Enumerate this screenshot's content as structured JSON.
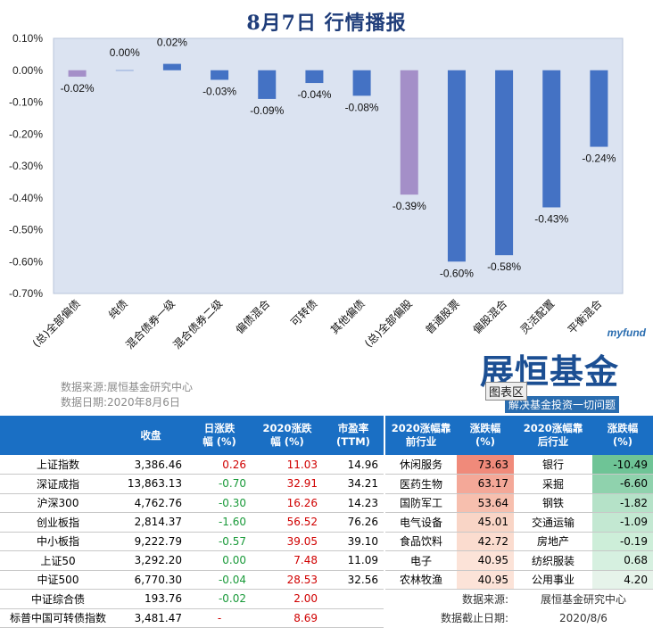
{
  "title": "8月7日  行情播报",
  "chart_data": {
    "type": "bar",
    "categories": [
      "(总)全部偏债",
      "纯债",
      "混合债券一级",
      "混合债券二级",
      "偏债混合",
      "可转债",
      "其他偏债",
      "(总)全部偏股",
      "普通股票",
      "偏股混合",
      "灵活配置",
      "平衡混合"
    ],
    "values": [
      -0.02,
      0.0,
      0.02,
      -0.03,
      -0.09,
      -0.04,
      -0.08,
      -0.39,
      -0.6,
      -0.58,
      -0.43,
      -0.24
    ],
    "value_labels": [
      "-0.02%",
      "0.00%",
      "0.02%",
      "-0.03%",
      "-0.09%",
      "-0.04%",
      "-0.08%",
      "-0.39%",
      "-0.60%",
      "-0.58%",
      "-0.43%",
      "-0.24%"
    ],
    "highlight_indices": [
      0,
      7
    ],
    "yticks": [
      "0.10%",
      "0.00%",
      "-0.10%",
      "-0.20%",
      "-0.30%",
      "-0.40%",
      "-0.50%",
      "-0.60%",
      "-0.70%"
    ],
    "ylim": [
      -0.7,
      0.1
    ],
    "colors": {
      "bar": "#4472c4",
      "highlight": "#a48fc8",
      "plot_bg": "#dbe3f1"
    }
  },
  "source": {
    "line1": "数据来源:展恒基金研究中心",
    "line2": "数据日期:2020年8月6日"
  },
  "logo": {
    "brand_en": "myfund",
    "brand_cn": "展恒基金",
    "chip": "图表区",
    "slogan": "解决基金投资一切问题"
  },
  "left_table": {
    "headers": [
      "",
      "收盘",
      "日涨跌\n幅 (%)",
      "2020涨跌\n幅 (%)",
      "市盈率\n(TTM)"
    ],
    "rows": [
      {
        "name": "上证指数",
        "close": "3,386.46",
        "day": "0.26",
        "ytd": "11.03",
        "pe": "14.96"
      },
      {
        "name": "深证成指",
        "close": "13,863.13",
        "day": "-0.70",
        "ytd": "32.91",
        "pe": "34.21"
      },
      {
        "name": "沪深300",
        "close": "4,762.76",
        "day": "-0.30",
        "ytd": "16.26",
        "pe": "14.23"
      },
      {
        "name": "创业板指",
        "close": "2,814.37",
        "day": "-1.60",
        "ytd": "56.52",
        "pe": "76.26"
      },
      {
        "name": "中小板指",
        "close": "9,222.79",
        "day": "-0.57",
        "ytd": "39.05",
        "pe": "39.10"
      },
      {
        "name": "上证50",
        "close": "3,292.20",
        "day": "0.00",
        "ytd": "7.48",
        "pe": "11.09"
      },
      {
        "name": "中证500",
        "close": "6,770.30",
        "day": "-0.04",
        "ytd": "28.53",
        "pe": "32.56"
      },
      {
        "name": "中证综合债",
        "close": "193.76",
        "day": "-0.02",
        "ytd": "2.00",
        "pe": ""
      },
      {
        "name": "标普中国可转债指数",
        "close": "3,481.47",
        "day": "-",
        "ytd": "8.69",
        "pe": ""
      }
    ]
  },
  "right_table": {
    "headers": [
      "2020涨幅靠\n前行业",
      "涨跌幅\n(%)",
      "2020涨幅靠\n后行业",
      "涨跌幅\n(%)"
    ],
    "rows": [
      {
        "top": "休闲服务",
        "top_v": "73.63",
        "bot": "银行",
        "bot_v": "-10.49"
      },
      {
        "top": "医药生物",
        "top_v": "63.17",
        "bot": "采掘",
        "bot_v": "-6.60"
      },
      {
        "top": "国防军工",
        "top_v": "53.64",
        "bot": "钢铁",
        "bot_v": "-1.82"
      },
      {
        "top": "电气设备",
        "top_v": "45.01",
        "bot": "交通运输",
        "bot_v": "-1.09"
      },
      {
        "top": "食品饮料",
        "top_v": "42.72",
        "bot": "房地产",
        "bot_v": "-0.19"
      },
      {
        "top": "电子",
        "top_v": "40.95",
        "bot": "纺织服装",
        "bot_v": "0.68"
      },
      {
        "top": "农林牧渔",
        "top_v": "40.95",
        "bot": "公用事业",
        "bot_v": "4.20"
      }
    ],
    "top_colors": [
      "#f08a7a",
      "#f4a898",
      "#f7bfae",
      "#f9d5c6",
      "#fbdccf",
      "#fce3d8",
      "#fce3d8"
    ],
    "bot_colors": [
      "#6ec496",
      "#8fd2ad",
      "#b5e2c8",
      "#c3e8d2",
      "#cdeed9",
      "#d6f0e0",
      "#e6f3ea"
    ],
    "foot": {
      "label1": "数据来源:",
      "value1": "展恒基金研究中心",
      "label2": "数据截止日期:",
      "value2": "2020/8/6"
    }
  }
}
